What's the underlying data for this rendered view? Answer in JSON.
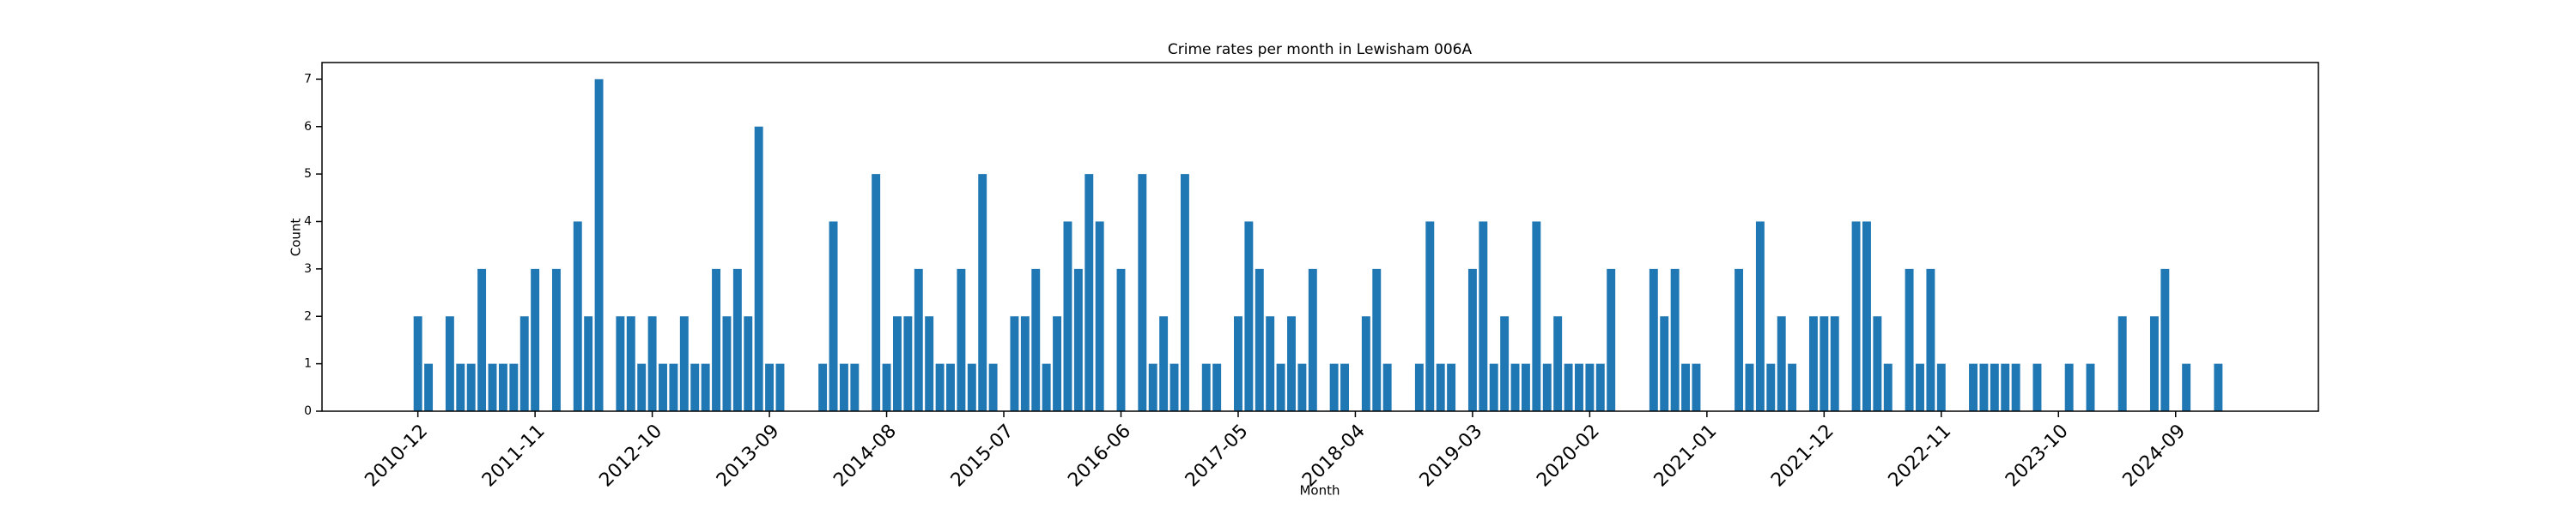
{
  "chart_data": {
    "type": "bar",
    "title": "Crime rates per month in Lewisham 006A",
    "x_label": "Month",
    "y_label": "Count",
    "color": "#1f77b4",
    "categories": [
      "2010-12",
      null,
      null,
      null,
      null,
      null,
      null,
      null,
      null,
      null,
      null,
      "2011-11",
      null,
      null,
      null,
      null,
      null,
      null,
      null,
      null,
      null,
      null,
      "2012-10",
      null,
      null,
      null,
      null,
      null,
      null,
      null,
      null,
      null,
      null,
      "2013-09",
      null,
      null,
      null,
      null,
      null,
      null,
      null,
      null,
      null,
      null,
      "2014-08",
      null,
      null,
      null,
      null,
      null,
      null,
      null,
      null,
      null,
      null,
      "2015-07",
      null,
      null,
      null,
      null,
      null,
      null,
      null,
      null,
      null,
      null,
      "2016-06",
      null,
      null,
      null,
      null,
      null,
      null,
      null,
      null,
      null,
      null,
      "2017-05",
      null,
      null,
      null,
      null,
      null,
      null,
      null,
      null,
      null,
      null,
      "2018-04",
      null,
      null,
      null,
      null,
      null,
      null,
      null,
      null,
      null,
      null,
      "2019-03",
      null,
      null,
      null,
      null,
      null,
      null,
      null,
      null,
      null,
      null,
      "2020-02",
      null,
      null,
      null,
      null,
      null,
      null,
      null,
      null,
      null,
      null,
      "2021-01",
      null,
      null,
      null,
      null,
      null,
      null,
      null,
      null,
      null,
      null,
      "2021-12",
      null,
      null,
      null,
      null,
      null,
      null,
      null,
      null,
      null,
      null,
      "2022-11",
      null,
      null,
      null,
      null,
      null,
      null,
      null,
      null,
      null,
      null,
      "2023-10",
      null,
      null,
      null,
      null,
      null,
      null,
      null,
      null,
      null,
      null,
      "2024-09",
      null,
      null,
      null,
      null
    ],
    "values": [
      2,
      1,
      0,
      2,
      1,
      1,
      3,
      1,
      1,
      1,
      2,
      3,
      0,
      3,
      0,
      4,
      2,
      7,
      0,
      2,
      2,
      1,
      2,
      1,
      1,
      2,
      1,
      1,
      3,
      2,
      3,
      2,
      6,
      1,
      1,
      0,
      0,
      0,
      1,
      4,
      1,
      1,
      0,
      5,
      1,
      2,
      2,
      3,
      2,
      1,
      1,
      3,
      1,
      5,
      1,
      0,
      2,
      2,
      3,
      1,
      2,
      4,
      3,
      5,
      4,
      0,
      3,
      0,
      5,
      1,
      2,
      1,
      5,
      0,
      1,
      1,
      0,
      2,
      4,
      3,
      2,
      1,
      2,
      1,
      3,
      0,
      1,
      1,
      0,
      2,
      3,
      1,
      0,
      0,
      1,
      4,
      1,
      1,
      0,
      3,
      4,
      1,
      2,
      1,
      1,
      4,
      1,
      2,
      1,
      1,
      1,
      1,
      3,
      0,
      0,
      0,
      3,
      2,
      3,
      1,
      1,
      0,
      0,
      0,
      3,
      1,
      4,
      1,
      2,
      1,
      0,
      2,
      2,
      2,
      0,
      4,
      4,
      2,
      1,
      0,
      3,
      1,
      3,
      1,
      0,
      0,
      1,
      1,
      1,
      1,
      1,
      0,
      1,
      0,
      0,
      1,
      0,
      1,
      0,
      0,
      2,
      0,
      0,
      2,
      3,
      0,
      1,
      0,
      0,
      1
    ],
    "ylim": [
      0,
      7.35
    ],
    "yticks": [
      0,
      1,
      2,
      3,
      4,
      5,
      6,
      7
    ]
  }
}
